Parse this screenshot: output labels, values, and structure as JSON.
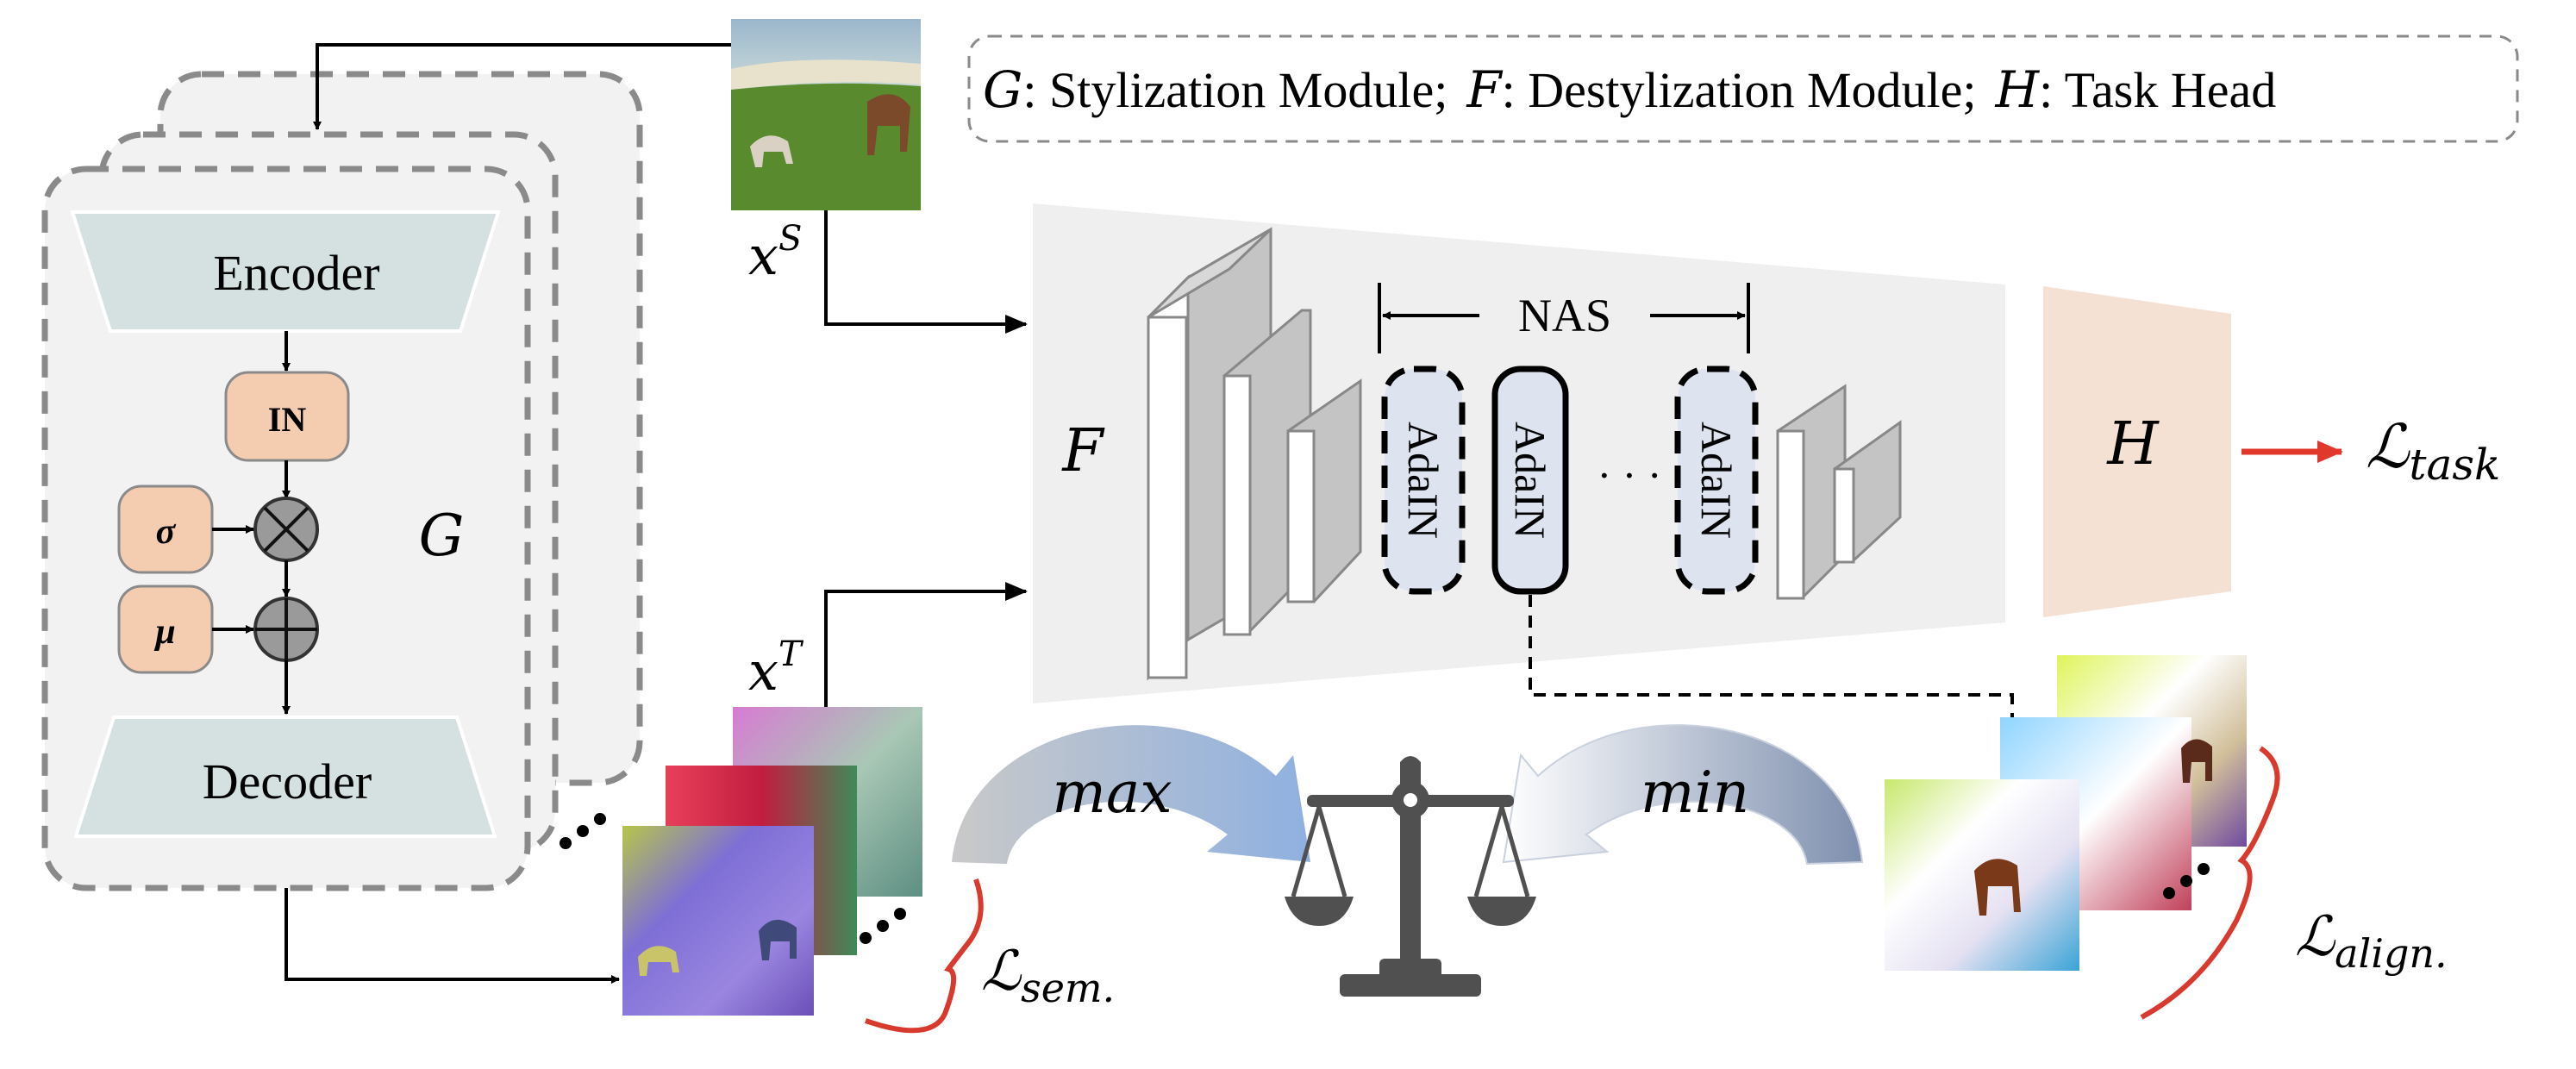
{
  "legend": {
    "g_symbol": "G",
    "g_text": ": Stylization Module;",
    "f_symbol": "F",
    "f_text": ": Destylization Module;",
    "h_symbol": "H",
    "h_text": ": Task Head"
  },
  "generator": {
    "encoder": "Encoder",
    "decoder": "Decoder",
    "in_block": "IN",
    "sigma": "σ",
    "mu": "μ",
    "label": "G"
  },
  "inputs": {
    "source_var": "x",
    "source_sup": "S",
    "target_var": "x",
    "target_sup": "T"
  },
  "network": {
    "f_label": "F",
    "nas_label": "NAS",
    "adain": [
      "AdaIN",
      "AdaIN",
      "AdaIN"
    ],
    "ellipsis": "· · ·",
    "head_label": "H"
  },
  "losses": {
    "task": "task",
    "sem": "sem.",
    "align": "align.",
    "script_L": "ℒ"
  },
  "game": {
    "max_label": "max",
    "min_label": "min"
  },
  "colors": {
    "stack_fill": "#f2f2f2",
    "stack_border": "#8a8a8a",
    "enc_dec_fill": "#d5e0e1",
    "peach": "#f4cdb1",
    "adain_fill": "#dde3ef",
    "trunk_fill": "#efefef",
    "head_fill": "#f5e1d4",
    "loss_red": "#e0392b",
    "brace_red": "#d83a2e",
    "arrow_max": "#a9bfdc",
    "arrow_min": "#8fa1bf",
    "scale_gray": "#505050"
  }
}
